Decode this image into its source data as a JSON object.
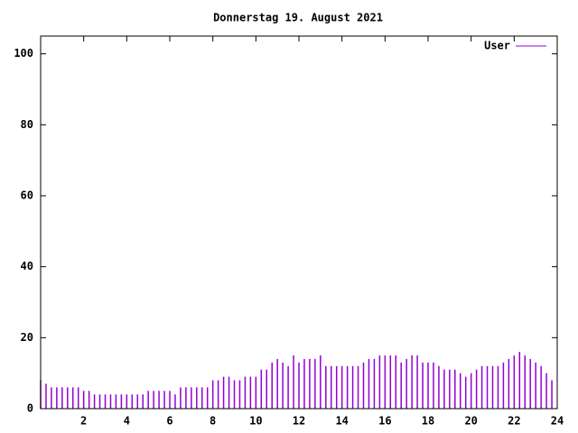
{
  "chart_data": {
    "type": "impulse",
    "title": "Donnerstag 19. August 2021",
    "x": [
      0,
      0.25,
      0.5,
      0.75,
      1,
      1.25,
      1.5,
      1.75,
      2,
      2.25,
      2.5,
      2.75,
      3,
      3.25,
      3.5,
      3.75,
      4,
      4.25,
      4.5,
      4.75,
      5,
      5.25,
      5.5,
      5.75,
      6,
      6.25,
      6.5,
      6.75,
      7,
      7.25,
      7.5,
      7.75,
      8,
      8.25,
      8.5,
      8.75,
      9,
      9.25,
      9.5,
      9.75,
      10,
      10.25,
      10.5,
      10.75,
      11,
      11.25,
      11.5,
      11.75,
      12,
      12.25,
      12.5,
      12.75,
      13,
      13.25,
      13.5,
      13.75,
      14,
      14.25,
      14.5,
      14.75,
      15,
      15.25,
      15.5,
      15.75,
      16,
      16.25,
      16.5,
      16.75,
      17,
      17.25,
      17.5,
      17.75,
      18,
      18.25,
      18.5,
      18.75,
      19,
      19.25,
      19.5,
      19.75,
      20,
      20.25,
      20.5,
      20.75,
      21,
      21.25,
      21.5,
      21.75,
      22,
      22.25,
      22.5,
      22.75,
      23,
      23.25,
      23.5,
      23.75
    ],
    "series": [
      {
        "name": "User",
        "color": "#9400d3",
        "values": [
          8,
          7,
          6,
          6,
          6,
          6,
          6,
          6,
          5,
          5,
          4,
          4,
          4,
          4,
          4,
          4,
          4,
          4,
          4,
          4,
          5,
          5,
          5,
          5,
          5,
          4,
          6,
          6,
          6,
          6,
          6,
          6,
          8,
          8,
          9,
          9,
          8,
          8,
          9,
          9,
          9,
          11,
          11,
          13,
          14,
          13,
          12,
          15,
          13,
          14,
          14,
          14,
          15,
          12,
          12,
          12,
          12,
          12,
          12,
          12,
          13,
          14,
          14,
          15,
          15,
          15,
          15,
          13,
          14,
          15,
          15,
          13,
          13,
          13,
          12,
          11,
          11,
          11,
          10,
          9,
          10,
          11,
          12,
          12,
          12,
          12,
          13,
          14,
          15,
          16,
          15,
          14,
          13,
          12,
          10,
          8
        ]
      }
    ],
    "xlim": [
      0,
      24
    ],
    "xticks": [
      2,
      4,
      6,
      8,
      10,
      12,
      14,
      16,
      18,
      20,
      22,
      24
    ],
    "ylim": [
      0,
      105
    ],
    "yticks": [
      0,
      20,
      40,
      60,
      80,
      100
    ],
    "legend": "top-right"
  }
}
